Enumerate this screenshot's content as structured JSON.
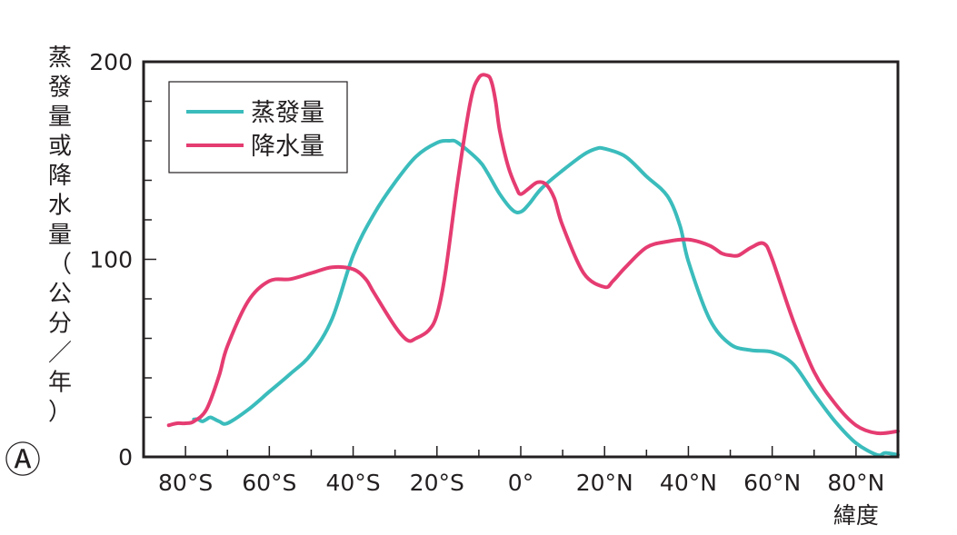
{
  "chart_data": {
    "type": "line",
    "ylabel": "蒸發量或降水量（公分／年）",
    "xlabel": "緯度",
    "ylim": [
      0,
      200
    ],
    "xlim": [
      -90,
      90
    ],
    "y_ticks": [
      {
        "value": 0,
        "label": "0"
      },
      {
        "value": 100,
        "label": "100"
      },
      {
        "value": 200,
        "label": "200"
      }
    ],
    "x_ticks": [
      {
        "value": -80,
        "label": "80°S"
      },
      {
        "value": -60,
        "label": "60°S"
      },
      {
        "value": -40,
        "label": "40°S"
      },
      {
        "value": -20,
        "label": "20°S"
      },
      {
        "value": 0,
        "label": "0°"
      },
      {
        "value": 20,
        "label": "20°N"
      },
      {
        "value": 40,
        "label": "40°N"
      },
      {
        "value": 60,
        "label": "60°N"
      },
      {
        "value": 80,
        "label": "80°N"
      }
    ],
    "legend_position": "top-left",
    "panel_label": "Ⓐ",
    "series": [
      {
        "name": "蒸發量",
        "color": "#3bbcbc",
        "x": [
          -78,
          -77,
          -76,
          -75,
          -74,
          -72,
          -70,
          -65,
          -60,
          -55,
          -50,
          -45,
          -40,
          -35,
          -30,
          -25,
          -20,
          -17,
          -15,
          -10,
          -8,
          -5,
          -2,
          0,
          2,
          5,
          10,
          15,
          18,
          20,
          25,
          30,
          35,
          38,
          40,
          45,
          50,
          55,
          60,
          65,
          70,
          75,
          80,
          85,
          87,
          90
        ],
        "y": [
          19,
          19,
          18,
          19,
          20,
          18,
          17,
          24,
          33,
          42,
          52,
          70,
          102,
          123,
          139,
          152,
          159,
          160,
          159,
          150,
          144,
          133,
          125,
          124,
          128,
          136,
          145,
          153,
          156,
          156,
          152,
          142,
          132,
          117,
          99,
          70,
          57,
          54,
          53,
          47,
          32,
          18,
          7,
          1,
          2,
          1
        ]
      },
      {
        "name": "降水量",
        "color": "#e53c72",
        "x": [
          -84,
          -82,
          -80,
          -78,
          -75,
          -72,
          -70,
          -65,
          -60,
          -55,
          -50,
          -45,
          -40,
          -37,
          -35,
          -30,
          -27,
          -25,
          -22,
          -20,
          -18,
          -15,
          -12,
          -10,
          -8,
          -7,
          -6,
          -5,
          -3,
          -1,
          0,
          2,
          4,
          6,
          8,
          10,
          15,
          20,
          22,
          25,
          30,
          35,
          40,
          45,
          48,
          50,
          52,
          55,
          58,
          60,
          65,
          70,
          75,
          80,
          85,
          90
        ],
        "y": [
          16,
          17,
          17,
          18,
          24,
          41,
          56,
          79,
          89,
          90,
          93,
          96,
          95,
          90,
          83,
          66,
          59,
          60,
          64,
          72,
          93,
          140,
          180,
          192,
          193,
          190,
          180,
          165,
          147,
          136,
          133,
          136,
          139,
          138,
          131,
          117,
          93,
          86,
          89,
          96,
          106,
          109,
          110,
          107,
          103,
          102,
          102,
          106,
          108,
          100,
          69,
          43,
          27,
          16,
          12,
          13
        ]
      }
    ]
  }
}
